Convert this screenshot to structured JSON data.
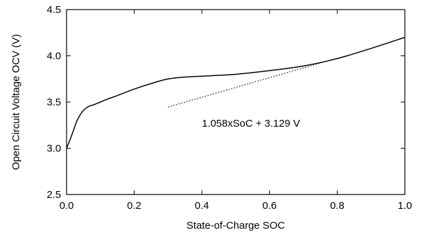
{
  "chart_data": {
    "type": "line",
    "title": "",
    "xlabel": "State-of-Charge SOC",
    "ylabel": "Open Circuit Voltage OCV (V)",
    "xlim": [
      0,
      1
    ],
    "ylim": [
      2.5,
      4.5
    ],
    "x_ticks": [
      0.0,
      0.2,
      0.4,
      0.6,
      0.8,
      1.0
    ],
    "x_tick_labels": [
      "0.0",
      "0.2",
      "0.4",
      "0.6",
      "0.8",
      "1.0"
    ],
    "y_ticks": [
      2.5,
      3.0,
      3.5,
      4.0,
      4.5
    ],
    "y_tick_labels": [
      "2.5",
      "3.0",
      "3.5",
      "4.0",
      "4.5"
    ],
    "grid": false,
    "series": [
      {
        "style": "solid",
        "color": "#000000",
        "x": [
          0.0,
          0.01,
          0.02,
          0.03,
          0.04,
          0.05,
          0.06,
          0.07,
          0.08,
          0.1,
          0.12,
          0.15,
          0.2,
          0.25,
          0.3,
          0.35,
          0.4,
          0.5,
          0.6,
          0.7,
          0.8,
          0.9,
          1.0
        ],
        "y": [
          3.0,
          3.09,
          3.19,
          3.29,
          3.36,
          3.41,
          3.44,
          3.46,
          3.47,
          3.5,
          3.53,
          3.57,
          3.64,
          3.7,
          3.75,
          3.77,
          3.78,
          3.8,
          3.84,
          3.89,
          3.97,
          4.08,
          4.2
        ]
      },
      {
        "style": "dotted",
        "color": "#000000",
        "x": [
          0.3,
          0.8
        ],
        "y": [
          3.446,
          3.975
        ]
      }
    ],
    "annotations": [
      {
        "text": "1.058xSoC + 3.129 V",
        "x": 0.4,
        "y": 3.27
      }
    ]
  }
}
